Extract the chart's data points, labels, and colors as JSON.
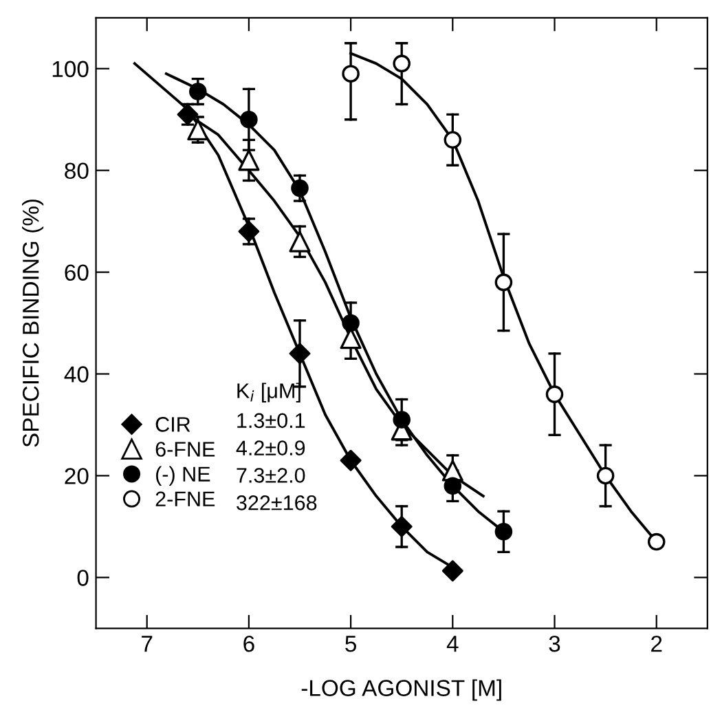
{
  "chart_data": {
    "type": "scatter",
    "xlabel": "-LOG AGONIST [M]",
    "ylabel": "SPECIFIC BINDING (%)",
    "xlim": [
      7.5,
      1.5
    ],
    "xticks": [
      7,
      6,
      5,
      4,
      3,
      2
    ],
    "ylim": [
      -10,
      110
    ],
    "yticks": [
      0,
      20,
      40,
      60,
      80,
      100
    ],
    "grid": false,
    "legend": "left",
    "series": [
      {
        "name": "CIR",
        "marker": "diamond",
        "color": "#000000",
        "x": [
          6.6,
          6.0,
          5.5,
          5.0,
          4.5,
          4.0
        ],
        "values": [
          91,
          68,
          44,
          23,
          10,
          1.3
        ],
        "errors": [
          2,
          2.5,
          6.5,
          null,
          4,
          null
        ]
      },
      {
        "name": "6-FNE",
        "marker": "triangle",
        "color": "#ffffff",
        "x": [
          6.5,
          6.0,
          5.5,
          5.0,
          4.5,
          4.0
        ],
        "values": [
          88,
          82,
          66,
          47,
          29,
          21
        ],
        "errors": [
          2.5,
          4,
          3,
          4,
          3,
          3
        ]
      },
      {
        "name": "(-) NE",
        "marker": "circle",
        "color": "#000000",
        "x": [
          6.5,
          6.0,
          5.5,
          5.0,
          4.5,
          4.0,
          3.5
        ],
        "values": [
          95.5,
          90,
          76.5,
          50,
          31,
          18,
          9
        ],
        "errors": [
          2.5,
          6,
          2.5,
          4,
          4,
          3,
          4
        ]
      },
      {
        "name": "2-FNE",
        "marker": "circle",
        "color": "#ffffff",
        "x": [
          5.0,
          4.5,
          4.0,
          3.5,
          3.0,
          2.5,
          2.0
        ],
        "values": [
          99,
          101,
          86,
          58,
          36,
          20,
          7
        ],
        "errors": [
          [
            90,
            105
          ],
          [
            93,
            105
          ],
          5,
          9.5,
          8,
          6,
          null
        ]
      },
      {
        "type": "line",
        "color": "#000000",
        "x": [
          7.12,
          6.6,
          6.3,
          6.0,
          5.75,
          5.5,
          5.25,
          5.0,
          4.75,
          4.5,
          4.25,
          4.0
        ],
        "values": [
          101,
          92,
          83,
          69,
          56,
          44,
          32,
          23,
          16,
          10,
          5,
          2
        ]
      },
      {
        "type": "line",
        "color": "#000000",
        "x": [
          6.6,
          6.3,
          6.0,
          5.75,
          5.5,
          5.25,
          5.0,
          4.75,
          4.5,
          4.25,
          4.0,
          3.7
        ],
        "values": [
          91,
          87,
          80,
          74,
          67,
          58,
          47,
          37,
          30,
          25,
          20,
          16
        ]
      },
      {
        "type": "line",
        "color": "#000000",
        "x": [
          6.81,
          6.5,
          6.25,
          6.0,
          5.75,
          5.5,
          5.25,
          5.0,
          4.75,
          4.5,
          4.25,
          4.0,
          3.75,
          3.5
        ],
        "values": [
          99,
          96,
          93,
          89,
          84,
          76,
          64,
          51,
          40,
          31,
          24,
          18,
          13,
          9
        ]
      },
      {
        "type": "line",
        "color": "#000000",
        "x": [
          5.0,
          4.75,
          4.5,
          4.25,
          4.0,
          3.75,
          3.5,
          3.25,
          3.0,
          2.75,
          2.5,
          2.25,
          2.0
        ],
        "values": [
          103,
          101,
          98,
          93,
          86,
          74,
          59,
          46,
          36,
          28,
          20,
          13,
          7
        ]
      }
    ],
    "annotations": [
      "K$_{i}$ [μM]",
      "1.3±0.1",
      "4.2±0.9",
      "7.3±2.0",
      "322±168"
    ]
  }
}
